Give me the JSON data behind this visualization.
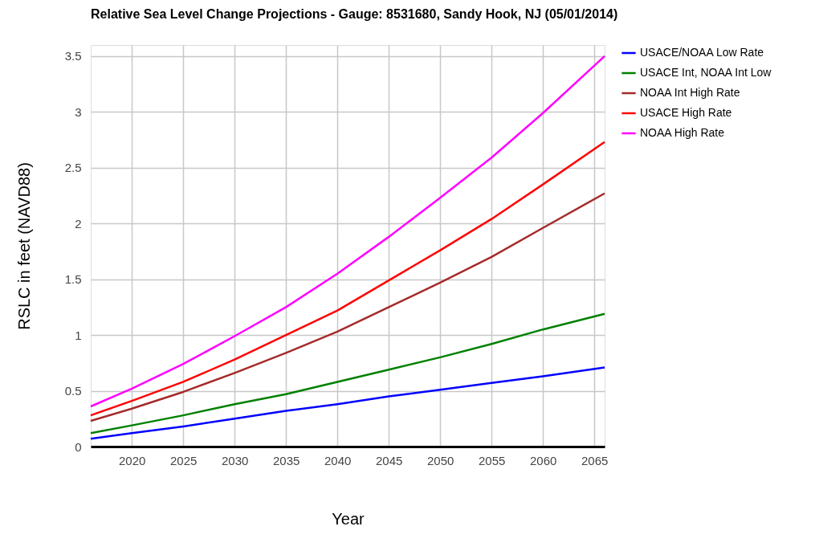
{
  "chart_data": {
    "type": "line",
    "title": "Relative Sea Level Change Projections - Gauge: 8531680, Sandy Hook, NJ (05/01/2014)",
    "xlabel": "Year",
    "ylabel": "RSLC in feet (NAVD88)",
    "x": [
      2016,
      2020,
      2025,
      2030,
      2035,
      2040,
      2045,
      2050,
      2055,
      2060,
      2066
    ],
    "series": [
      {
        "name": "USACE/NOAA Low Rate",
        "color": "#0000ff",
        "values": [
          0.07,
          0.12,
          0.18,
          0.25,
          0.32,
          0.38,
          0.45,
          0.51,
          0.57,
          0.63,
          0.71
        ]
      },
      {
        "name": "USACE Int, NOAA Int Low",
        "color": "#008000",
        "values": [
          0.12,
          0.19,
          0.28,
          0.38,
          0.47,
          0.58,
          0.69,
          0.8,
          0.92,
          1.05,
          1.19
        ]
      },
      {
        "name": "NOAA Int High Rate",
        "color": "#a52a2a",
        "values": [
          0.23,
          0.34,
          0.49,
          0.66,
          0.84,
          1.03,
          1.25,
          1.47,
          1.7,
          1.96,
          2.27
        ]
      },
      {
        "name": "USACE High Rate",
        "color": "#ff0000",
        "values": [
          0.28,
          0.41,
          0.58,
          0.78,
          1.0,
          1.22,
          1.49,
          1.76,
          2.04,
          2.35,
          2.73
        ]
      },
      {
        "name": "NOAA High Rate",
        "color": "#ff00ff",
        "values": [
          0.36,
          0.52,
          0.74,
          0.99,
          1.25,
          1.55,
          1.88,
          2.23,
          2.59,
          2.99,
          3.5
        ]
      }
    ],
    "xlim": [
      2016,
      2066
    ],
    "xticks": [
      2020,
      2025,
      2030,
      2035,
      2040,
      2045,
      2050,
      2055,
      2060,
      2065
    ],
    "ylim": [
      0,
      3.6
    ],
    "yticks": [
      0,
      0.5,
      1,
      1.5,
      2,
      2.5,
      3,
      3.5
    ],
    "grid": true,
    "legend": "top right",
    "marker": "none",
    "line_style": "solid"
  }
}
